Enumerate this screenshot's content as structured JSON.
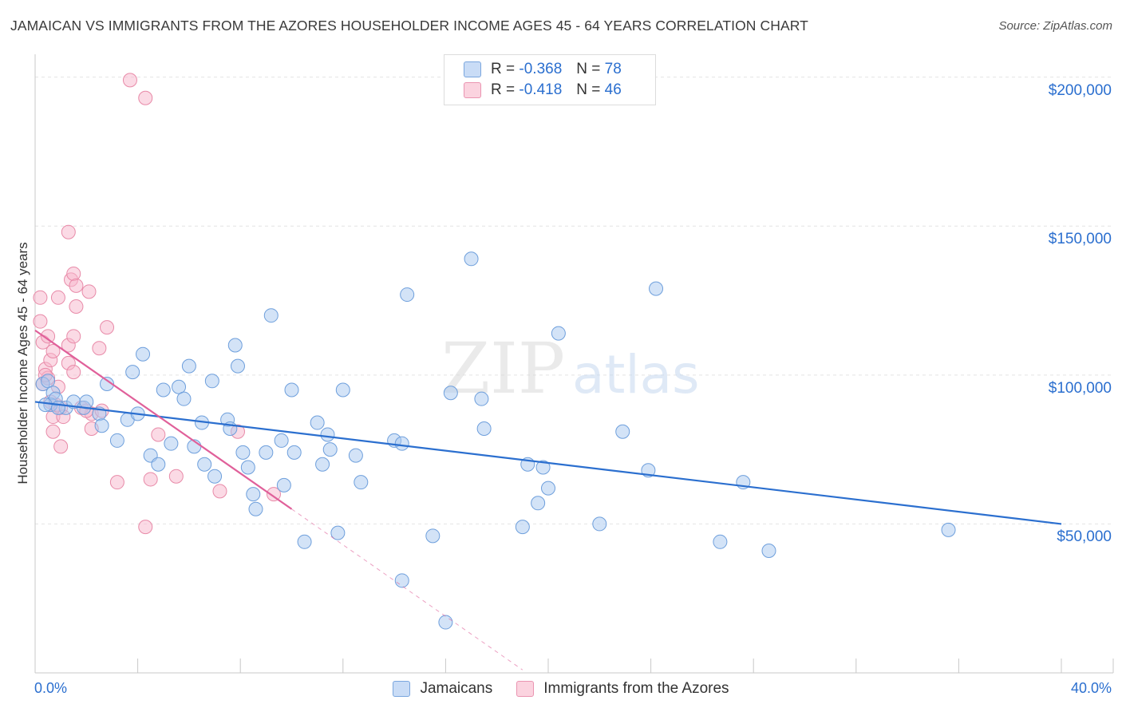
{
  "title": "JAMAICAN VS IMMIGRANTS FROM THE AZORES HOUSEHOLDER INCOME AGES 45 - 64 YEARS CORRELATION CHART",
  "source": "Source: ZipAtlas.com",
  "watermark": {
    "zip": "ZIP",
    "atlas": "atlas"
  },
  "legend_stats": [
    {
      "r_label": "R =",
      "r_value": "-0.368",
      "n_label": "N =",
      "n_value": "78",
      "color": "#a8c8f0"
    },
    {
      "r_label": "R =",
      "r_value": "-0.418",
      "n_label": "N =",
      "n_value": "46",
      "color": "#f7b6cb"
    }
  ],
  "bottom_legend": [
    {
      "label": "Jamaicans",
      "color": "#a8c8f0"
    },
    {
      "label": "Immigrants from the Azores",
      "color": "#f7b6cb"
    }
  ],
  "chart_data": {
    "type": "scatter",
    "title": "JAMAICAN VS IMMIGRANTS FROM THE AZORES HOUSEHOLDER INCOME AGES 45 - 64 YEARS CORRELATION CHART",
    "xlabel": "",
    "ylabel": "Householder Income Ages 45 - 64 years",
    "xlim": [
      0,
      40
    ],
    "ylim": [
      0,
      205000
    ],
    "x_tick_labels": [
      "0.0%",
      "40.0%"
    ],
    "y_ticks": [
      50000,
      100000,
      150000,
      200000
    ],
    "y_tick_labels": [
      "$50,000",
      "$100,000",
      "$150,000",
      "$200,000"
    ],
    "grid": true,
    "legend": "top-center",
    "series": [
      {
        "name": "Jamaicans",
        "color": "#a8c8f0",
        "stroke": "#6e9fdc",
        "trend": {
          "x0": 0,
          "y0": 91000,
          "x1": 40,
          "y1": 50000,
          "color": "#2b6fcf"
        },
        "points": [
          [
            0.3,
            97000
          ],
          [
            0.5,
            98000
          ],
          [
            0.7,
            94000
          ],
          [
            0.6,
            90000
          ],
          [
            0.8,
            92000
          ],
          [
            1.2,
            89000
          ],
          [
            1.5,
            91000
          ],
          [
            1.9,
            89000
          ],
          [
            2.0,
            91000
          ],
          [
            2.5,
            87000
          ],
          [
            2.6,
            83000
          ],
          [
            2.8,
            97000
          ],
          [
            3.2,
            78000
          ],
          [
            3.6,
            85000
          ],
          [
            3.8,
            101000
          ],
          [
            4.0,
            87000
          ],
          [
            4.2,
            107000
          ],
          [
            4.5,
            73000
          ],
          [
            4.8,
            70000
          ],
          [
            5.0,
            95000
          ],
          [
            5.3,
            77000
          ],
          [
            5.6,
            96000
          ],
          [
            5.8,
            92000
          ],
          [
            6.0,
            103000
          ],
          [
            6.2,
            76000
          ],
          [
            6.5,
            84000
          ],
          [
            6.6,
            70000
          ],
          [
            6.9,
            98000
          ],
          [
            7.0,
            66000
          ],
          [
            7.5,
            85000
          ],
          [
            7.6,
            82000
          ],
          [
            7.8,
            110000
          ],
          [
            7.9,
            103000
          ],
          [
            8.1,
            74000
          ],
          [
            8.3,
            69000
          ],
          [
            8.5,
            60000
          ],
          [
            8.6,
            55000
          ],
          [
            9.0,
            74000
          ],
          [
            9.2,
            120000
          ],
          [
            9.6,
            78000
          ],
          [
            9.7,
            63000
          ],
          [
            10.0,
            95000
          ],
          [
            10.1,
            74000
          ],
          [
            10.5,
            44000
          ],
          [
            11.0,
            84000
          ],
          [
            11.2,
            70000
          ],
          [
            11.4,
            80000
          ],
          [
            11.5,
            75000
          ],
          [
            11.8,
            47000
          ],
          [
            12.0,
            95000
          ],
          [
            12.5,
            73000
          ],
          [
            12.7,
            64000
          ],
          [
            14.0,
            78000
          ],
          [
            14.3,
            77000
          ],
          [
            14.5,
            127000
          ],
          [
            14.3,
            31000
          ],
          [
            15.5,
            46000
          ],
          [
            16.0,
            17000
          ],
          [
            16.2,
            94000
          ],
          [
            17.0,
            139000
          ],
          [
            17.4,
            92000
          ],
          [
            17.5,
            82000
          ],
          [
            19.0,
            49000
          ],
          [
            19.2,
            70000
          ],
          [
            19.6,
            57000
          ],
          [
            19.8,
            69000
          ],
          [
            20.0,
            62000
          ],
          [
            20.4,
            114000
          ],
          [
            22.0,
            50000
          ],
          [
            22.9,
            81000
          ],
          [
            23.9,
            68000
          ],
          [
            24.2,
            129000
          ],
          [
            26.7,
            44000
          ],
          [
            27.6,
            64000
          ],
          [
            28.6,
            41000
          ],
          [
            35.6,
            48000
          ],
          [
            0.4,
            90000
          ],
          [
            0.9,
            89000
          ]
        ]
      },
      {
        "name": "Immigrants from the Azores",
        "color": "#f7b6cb",
        "stroke": "#e88aa8",
        "trend": {
          "x0": 0,
          "y0": 115000,
          "x1": 10,
          "y1": 55000,
          "color": "#e0609a"
        },
        "trend_dashed": {
          "x0": 10,
          "y0": 55000,
          "x1": 19,
          "y1": 1000
        },
        "points": [
          [
            0.2,
            118000
          ],
          [
            0.2,
            126000
          ],
          [
            0.3,
            111000
          ],
          [
            0.4,
            102000
          ],
          [
            0.3,
            97000
          ],
          [
            0.5,
            99000
          ],
          [
            0.5,
            113000
          ],
          [
            0.6,
            105000
          ],
          [
            0.7,
            108000
          ],
          [
            0.7,
            86000
          ],
          [
            0.7,
            81000
          ],
          [
            0.8,
            90000
          ],
          [
            0.9,
            96000
          ],
          [
            0.9,
            126000
          ],
          [
            1.0,
            76000
          ],
          [
            1.0,
            89000
          ],
          [
            1.1,
            86000
          ],
          [
            1.3,
            110000
          ],
          [
            1.3,
            104000
          ],
          [
            1.3,
            148000
          ],
          [
            1.4,
            132000
          ],
          [
            1.5,
            134000
          ],
          [
            1.5,
            101000
          ],
          [
            1.5,
            113000
          ],
          [
            1.6,
            123000
          ],
          [
            1.6,
            130000
          ],
          [
            2.1,
            128000
          ],
          [
            2.2,
            87000
          ],
          [
            2.2,
            82000
          ],
          [
            2.5,
            109000
          ],
          [
            2.6,
            88000
          ],
          [
            2.8,
            116000
          ],
          [
            3.2,
            64000
          ],
          [
            3.7,
            199000
          ],
          [
            4.3,
            193000
          ],
          [
            4.3,
            49000
          ],
          [
            4.5,
            65000
          ],
          [
            4.8,
            80000
          ],
          [
            5.5,
            66000
          ],
          [
            7.2,
            61000
          ],
          [
            7.9,
            81000
          ],
          [
            9.3,
            60000
          ],
          [
            0.4,
            100000
          ],
          [
            0.6,
            91000
          ],
          [
            1.8,
            89000
          ],
          [
            2.0,
            88000
          ]
        ]
      }
    ]
  }
}
